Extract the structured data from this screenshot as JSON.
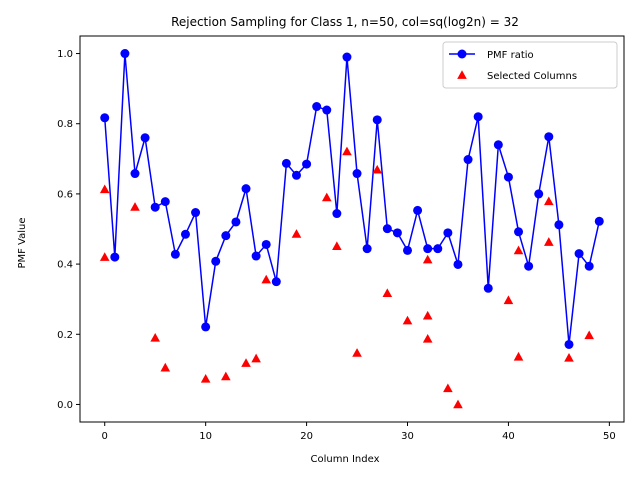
{
  "chart_data": {
    "type": "line",
    "title": "Rejection Sampling for Class 1, n=50, col=sq(log2n) = 32",
    "xlabel": "Column Index",
    "ylabel": "PMF Value",
    "xlim": [
      -2.45,
      51.45
    ],
    "ylim": [
      -0.05,
      1.05
    ],
    "xticks": [
      0,
      10,
      20,
      30,
      40,
      50
    ],
    "yticks": [
      0.0,
      0.2,
      0.4,
      0.6,
      0.8,
      1.0
    ],
    "ytick_labels": [
      "0.0",
      "0.2",
      "0.4",
      "0.6",
      "0.8",
      "1.0"
    ],
    "grid": false,
    "legend_position": "top-right",
    "series": [
      {
        "name": "PMF ratio",
        "kind": "line-with-markers",
        "color": "#0000ff",
        "x": [
          0,
          1,
          2,
          3,
          4,
          5,
          6,
          7,
          8,
          9,
          10,
          11,
          12,
          13,
          14,
          15,
          16,
          17,
          18,
          19,
          20,
          21,
          22,
          23,
          24,
          25,
          26,
          27,
          28,
          29,
          30,
          31,
          32,
          33,
          34,
          35,
          36,
          37,
          38,
          39,
          40,
          41,
          42,
          43,
          44,
          45,
          46,
          47,
          48,
          49
        ],
        "y": [
          0.817,
          0.42,
          1.0,
          0.658,
          0.76,
          0.562,
          0.578,
          0.428,
          0.485,
          0.547,
          0.221,
          0.408,
          0.481,
          0.52,
          0.615,
          0.423,
          0.456,
          0.35,
          0.687,
          0.653,
          0.685,
          0.849,
          0.839,
          0.544,
          0.99,
          0.658,
          0.444,
          0.811,
          0.501,
          0.489,
          0.439,
          0.553,
          0.444,
          0.444,
          0.489,
          0.399,
          0.698,
          0.82,
          0.331,
          0.74,
          0.648,
          0.492,
          0.394,
          0.6,
          0.763,
          0.512,
          0.171,
          0.43,
          0.394,
          0.522
        ]
      },
      {
        "name": "Selected Columns",
        "kind": "scatter-triangle",
        "color": "#ff0000",
        "x": [
          0,
          0,
          3,
          5,
          6,
          10,
          12,
          14,
          15,
          16,
          19,
          22,
          23,
          24,
          25,
          27,
          28,
          30,
          32,
          32,
          32,
          34,
          35,
          40,
          41,
          41,
          44,
          44,
          46,
          48
        ],
        "y": [
          0.613,
          0.42,
          0.563,
          0.19,
          0.105,
          0.073,
          0.08,
          0.118,
          0.131,
          0.356,
          0.486,
          0.59,
          0.451,
          0.721,
          0.147,
          0.669,
          0.317,
          0.239,
          0.413,
          0.253,
          0.187,
          0.046,
          0.0,
          0.297,
          0.439,
          0.136,
          0.579,
          0.463,
          0.133,
          0.197
        ]
      }
    ]
  }
}
